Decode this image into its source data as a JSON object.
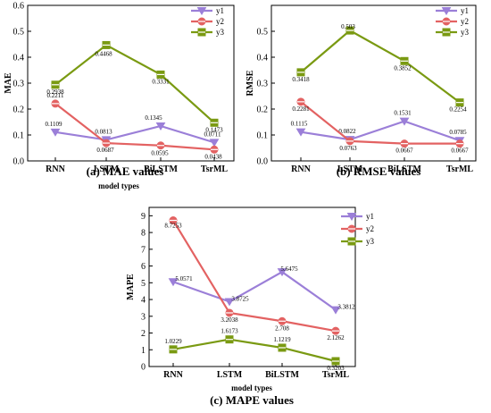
{
  "chart_data": [
    {
      "type": "line",
      "id": "mae",
      "caption": "(a) MAE values",
      "ylabel": "MAE",
      "xlabel": "model types",
      "categories": [
        "RNN",
        "LSTM",
        "BiLSTM",
        "TsrML"
      ],
      "ylim": [
        0,
        0.6
      ],
      "yticks": [
        "0.0",
        "0.1",
        "0.2",
        "0.3",
        "0.4",
        "0.5",
        "0.6"
      ],
      "legend_position": "top-right",
      "grid": false,
      "series": [
        {
          "name": "y1",
          "color": "#9b7fd8",
          "marker": "triangle-down",
          "values": [
            0.1109,
            0.0813,
            0.1345,
            0.0711
          ],
          "labels": [
            "0.1109",
            "0.0813",
            "0.1345",
            "0.0711"
          ]
        },
        {
          "name": "y2",
          "color": "#e36262",
          "marker": "circle",
          "values": [
            0.2211,
            0.0687,
            0.0595,
            0.0438
          ],
          "labels": [
            "0.2211",
            "0.0687",
            "0.0595",
            "0.0438"
          ]
        },
        {
          "name": "y3",
          "color": "#7a9a12",
          "marker": "square",
          "values": [
            0.2938,
            0.4468,
            0.3331,
            0.1473
          ],
          "labels": [
            "0.2938",
            "0.4468",
            "0.3331",
            "0.1473"
          ]
        }
      ]
    },
    {
      "type": "line",
      "id": "rmse",
      "caption": "(b) RMSE values",
      "ylabel": "RMSE",
      "xlabel": "",
      "categories": [
        "RNN",
        "LSTM",
        "BiLSTM",
        "TsrML"
      ],
      "ylim": [
        0,
        0.6
      ],
      "yticks": [
        "0.0",
        "0.1",
        "0.2",
        "0.3",
        "0.4",
        "0.5"
      ],
      "legend_position": "top-right",
      "grid": false,
      "series": [
        {
          "name": "y1",
          "color": "#9b7fd8",
          "marker": "triangle-down",
          "values": [
            0.1115,
            0.0822,
            0.1531,
            0.0785
          ],
          "labels": [
            "0.1115",
            "0.0822",
            "0.1531",
            "0.0785"
          ]
        },
        {
          "name": "y2",
          "color": "#e36262",
          "marker": "circle",
          "values": [
            0.2281,
            0.0763,
            0.0667,
            0.0667
          ],
          "labels": [
            "0.2281",
            "0.0763",
            "0.0667",
            "0.0667"
          ]
        },
        {
          "name": "y3",
          "color": "#7a9a12",
          "marker": "square",
          "values": [
            0.3418,
            0.503,
            0.3852,
            0.2254
          ],
          "labels": [
            "0.3418",
            "0.503",
            "0.3852",
            "0.2254"
          ]
        }
      ]
    },
    {
      "type": "line",
      "id": "mape",
      "caption": "(c) MAPE values",
      "ylabel": "MAPE",
      "xlabel": "model types",
      "categories": [
        "RNN",
        "LSTM",
        "BiLSTM",
        "TsrML"
      ],
      "ylim": [
        0,
        9.5
      ],
      "yticks": [
        "0",
        "1",
        "2",
        "3",
        "4",
        "5",
        "6",
        "7",
        "8",
        "9"
      ],
      "legend_position": "top-right",
      "grid": false,
      "series": [
        {
          "name": "y1",
          "color": "#9b7fd8",
          "marker": "triangle-down",
          "values": [
            5.0571,
            3.8725,
            5.6475,
            3.3812
          ],
          "labels": [
            "5.0571",
            "3.8725",
            "5.6475",
            "3.3812"
          ]
        },
        {
          "name": "y2",
          "color": "#e36262",
          "marker": "circle",
          "values": [
            8.7253,
            3.2038,
            2.708,
            2.1262
          ],
          "labels": [
            "8.7253",
            "3.2038",
            "2.708",
            "2.1262"
          ]
        },
        {
          "name": "y3",
          "color": "#7a9a12",
          "marker": "square",
          "values": [
            1.0229,
            1.6173,
            1.1219,
            0.3203
          ],
          "labels": [
            "1.0229",
            "1.6173",
            "1.1219",
            "0.3203"
          ]
        }
      ]
    }
  ]
}
